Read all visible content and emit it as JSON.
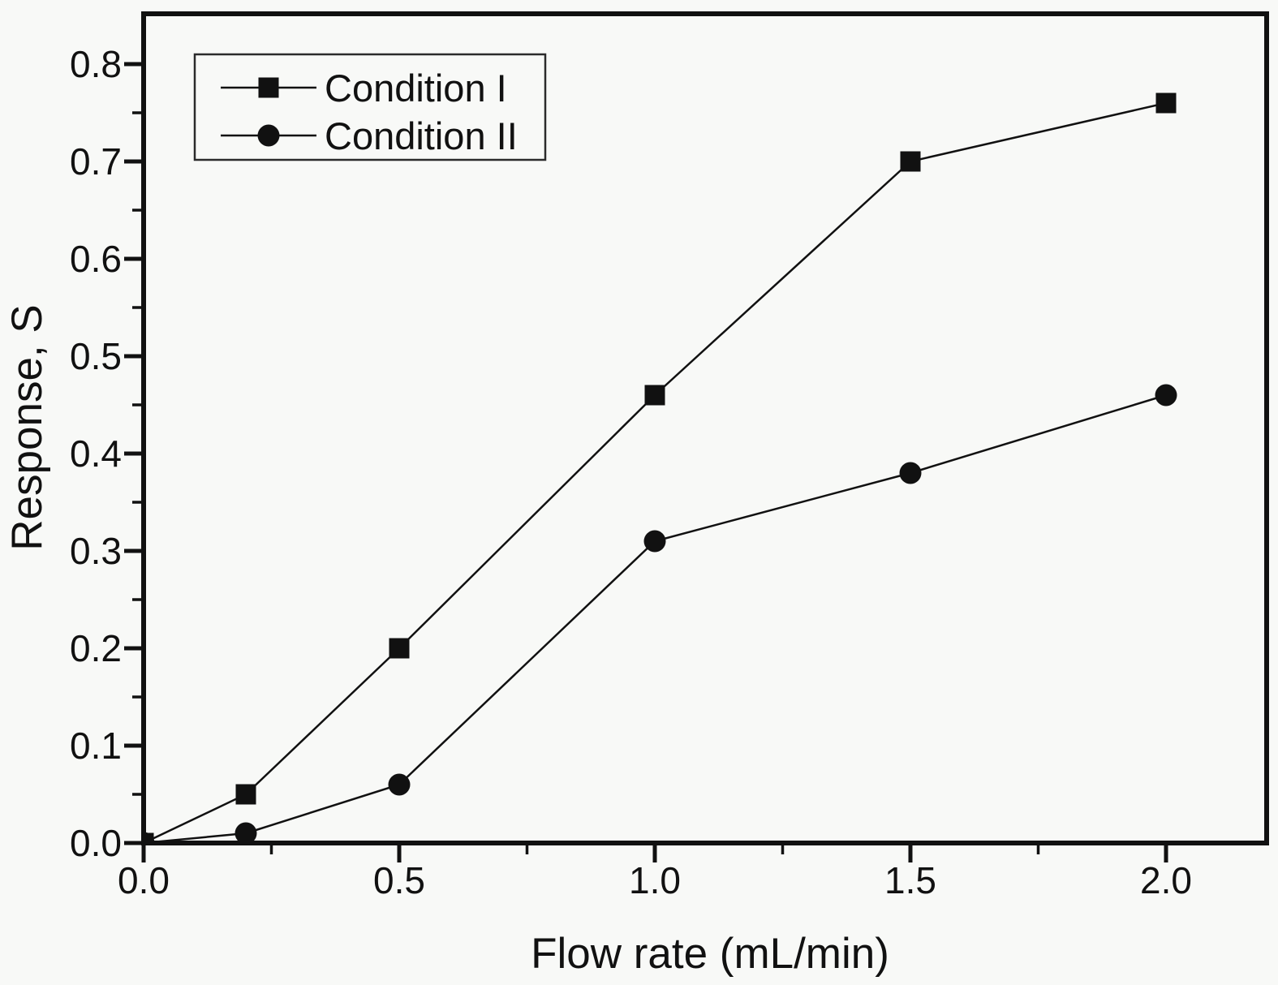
{
  "figure": {
    "background": "#f8f9f7",
    "frame_color": "#111111",
    "legend_border_color": "#2b2b2b"
  },
  "chart_data": {
    "type": "line",
    "title": "",
    "xlabel": "Flow rate (mL/min)",
    "ylabel": "Response, S",
    "xlim": [
      0,
      2.2
    ],
    "ylim": [
      0,
      0.852
    ],
    "grid": false,
    "x_ticks": {
      "major": [
        0,
        0.5,
        1.0,
        1.5,
        2.0
      ],
      "labels": [
        "0.0",
        "0.5",
        "1.0",
        "1.5",
        "2.0"
      ],
      "minor": [
        0.25,
        0.75,
        1.25,
        1.75
      ]
    },
    "y_ticks": {
      "major": [
        0,
        0.1,
        0.2,
        0.3,
        0.4,
        0.5,
        0.6,
        0.7,
        0.8
      ],
      "labels": [
        "0.0",
        "0.1",
        "0.2",
        "0.3",
        "0.4",
        "0.5",
        "0.6",
        "0.7",
        "0.8"
      ],
      "minor": [
        0.05,
        0.15,
        0.25,
        0.35,
        0.45,
        0.55,
        0.65,
        0.75
      ]
    },
    "legend": {
      "position": "top-left",
      "entries": [
        "Condition I",
        "Condition II"
      ]
    },
    "series": [
      {
        "name": "Condition I",
        "marker": "square",
        "color": "#111111",
        "points": [
          [
            0,
            0
          ],
          [
            0.2,
            0.05
          ],
          [
            0.5,
            0.2
          ],
          [
            1.0,
            0.46
          ],
          [
            1.5,
            0.7
          ],
          [
            2.0,
            0.76
          ]
        ]
      },
      {
        "name": "Condition II",
        "marker": "circle",
        "color": "#111111",
        "points": [
          [
            0,
            0
          ],
          [
            0.2,
            0.01
          ],
          [
            0.5,
            0.06
          ],
          [
            1.0,
            0.31
          ],
          [
            1.5,
            0.38
          ],
          [
            2.0,
            0.46
          ]
        ]
      }
    ]
  }
}
